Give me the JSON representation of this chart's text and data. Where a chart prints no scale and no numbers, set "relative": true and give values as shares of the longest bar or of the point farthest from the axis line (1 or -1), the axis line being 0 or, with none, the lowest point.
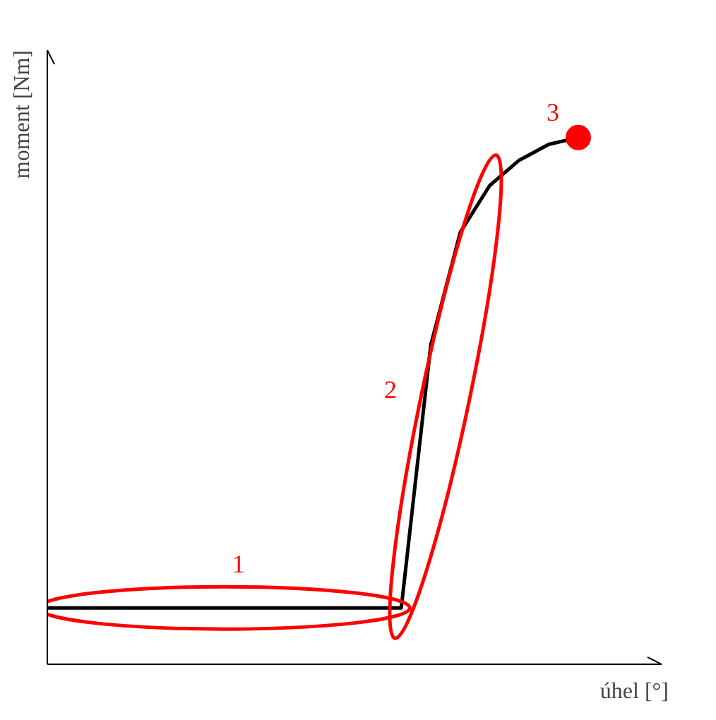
{
  "chart_data": {
    "type": "line",
    "relative": true,
    "xlabel": "úhel [°]",
    "ylabel": "moment [Nm]",
    "categories": [
      null,
      null,
      null,
      null,
      null,
      null,
      null,
      null,
      null,
      null,
      null,
      null,
      null,
      null,
      null,
      null,
      null,
      null,
      null
    ],
    "series": [
      {
        "color": "#000000",
        "values": [
          0.107,
          0.107,
          0.107,
          0.107,
          0.107,
          0.107,
          0.107,
          0.107,
          0.107,
          0.107,
          0.107,
          0.107,
          0.107,
          0.606,
          0.82,
          0.909,
          0.957,
          0.987,
          1
        ]
      }
    ],
    "annotations": [
      "1",
      "2",
      {
        "text": "3",
        "y": 1
      }
    ]
  }
}
